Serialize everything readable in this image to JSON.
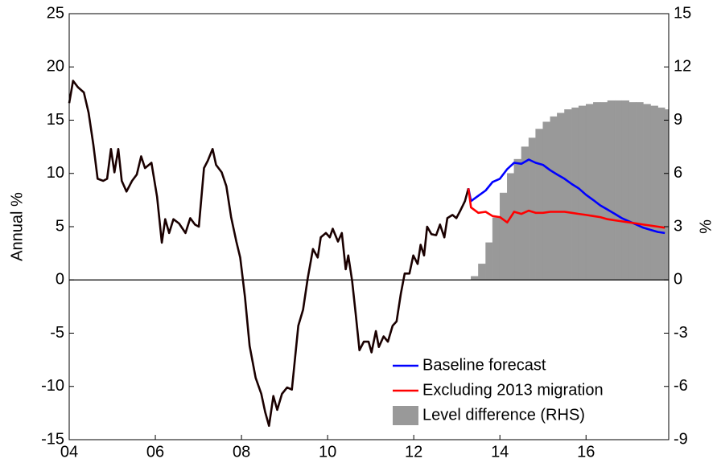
{
  "chart_data": {
    "type": "line",
    "x": [
      2004.0,
      2004.09,
      2004.2,
      2004.34,
      2004.45,
      2004.56,
      2004.66,
      2004.79,
      2004.88,
      2004.97,
      2005.05,
      2005.14,
      2005.22,
      2005.33,
      2005.46,
      2005.57,
      2005.67,
      2005.76,
      2005.91,
      2006.04,
      2006.15,
      2006.23,
      2006.32,
      2006.42,
      2006.55,
      2006.7,
      2006.81,
      2006.92,
      2007.01,
      2007.13,
      2007.22,
      2007.33,
      2007.41,
      2007.54,
      2007.65,
      2007.76,
      2007.88,
      2007.97,
      2008.08,
      2008.19,
      2008.33,
      2008.46,
      2008.55,
      2008.64,
      2008.74,
      2008.83,
      2008.94,
      2009.06,
      2009.17,
      2009.32,
      2009.43,
      2009.54,
      2009.66,
      2009.77,
      2009.84,
      2009.96,
      2010.05,
      2010.12,
      2010.24,
      2010.33,
      2010.42,
      2010.48,
      2010.57,
      2010.65,
      2010.74,
      2010.84,
      2010.95,
      2011.02,
      2011.12,
      2011.19,
      2011.3,
      2011.4,
      2011.51,
      2011.6,
      2011.7,
      2011.79,
      2011.9,
      2011.99,
      2012.09,
      2012.16,
      2012.24,
      2012.31,
      2012.41,
      2012.52,
      2012.61,
      2012.71,
      2012.78,
      2012.9,
      2012.99,
      2013.08,
      2013.19,
      2013.27,
      2013.33,
      2013.5,
      2013.67,
      2013.83,
      2014.0,
      2014.17,
      2014.33,
      2014.5,
      2014.67,
      2014.83,
      2015.0,
      2015.17,
      2015.33,
      2015.5,
      2015.67,
      2015.83,
      2016.0,
      2016.17,
      2016.33,
      2016.5,
      2016.67,
      2016.83,
      2017.0,
      2017.17,
      2017.33,
      2017.5,
      2017.67,
      2017.83
    ],
    "series": [
      {
        "color": "#1a0000",
        "values": [
          16.6,
          18.7,
          18.1,
          17.6,
          15.7,
          12.7,
          9.5,
          9.3,
          9.5,
          12.3,
          10.1,
          12.3,
          9.3,
          8.3,
          9.3,
          9.9,
          11.6,
          10.5,
          11.0,
          7.8,
          3.5,
          5.7,
          4.4,
          5.7,
          5.3,
          4.4,
          5.8,
          5.2,
          5.0,
          10.5,
          11.2,
          12.3,
          10.8,
          10.1,
          8.8,
          5.9,
          3.6,
          2.1,
          -1.6,
          -6.2,
          -9.2,
          -10.7,
          -12.4,
          -13.7,
          -10.9,
          -12.2,
          -10.7,
          -10.1,
          -10.3,
          -4.3,
          -2.8,
          0.2,
          2.9,
          2.1,
          4.0,
          4.4,
          4.0,
          4.8,
          3.6,
          4.4,
          1.0,
          2.3,
          -0.1,
          -3.1,
          -6.6,
          -5.8,
          -5.8,
          -6.8,
          -4.8,
          -6.3,
          -5.3,
          -5.8,
          -4.3,
          -3.9,
          -1.3,
          0.6,
          0.6,
          2.3,
          1.5,
          3.3,
          2.3,
          5.0,
          4.3,
          4.2,
          5.2,
          4.0,
          5.8,
          6.1,
          5.8,
          6.5,
          7.4,
          8.6,
          null,
          null,
          null,
          null,
          null,
          null,
          null,
          null,
          null,
          null,
          null,
          null,
          null,
          null,
          null,
          null,
          null,
          null,
          null,
          null,
          null,
          null,
          null,
          null,
          null,
          null,
          null,
          null
        ]
      },
      {
        "name": "Baseline forecast",
        "color": "#0000ff",
        "values": [
          null,
          null,
          null,
          null,
          null,
          null,
          null,
          null,
          null,
          null,
          null,
          null,
          null,
          null,
          null,
          null,
          null,
          null,
          null,
          null,
          null,
          null,
          null,
          null,
          null,
          null,
          null,
          null,
          null,
          null,
          null,
          null,
          null,
          null,
          null,
          null,
          null,
          null,
          null,
          null,
          null,
          null,
          null,
          null,
          null,
          null,
          null,
          null,
          null,
          null,
          null,
          null,
          null,
          null,
          null,
          null,
          null,
          null,
          null,
          null,
          null,
          null,
          null,
          null,
          null,
          null,
          null,
          null,
          null,
          null,
          null,
          null,
          null,
          null,
          null,
          null,
          null,
          null,
          null,
          null,
          null,
          null,
          null,
          null,
          null,
          null,
          null,
          null,
          null,
          null,
          null,
          8.6,
          7.4,
          7.9,
          8.4,
          9.2,
          9.5,
          10.4,
          11.0,
          10.9,
          11.3,
          11.0,
          10.8,
          10.3,
          9.9,
          9.5,
          9.0,
          8.6,
          8.0,
          7.5,
          7.0,
          6.6,
          6.2,
          5.8,
          5.5,
          5.2,
          4.9,
          4.7,
          4.5,
          4.4
        ]
      },
      {
        "name": "Excluding 2013 migration",
        "color": "#ff0000",
        "values": [
          null,
          null,
          null,
          null,
          null,
          null,
          null,
          null,
          null,
          null,
          null,
          null,
          null,
          null,
          null,
          null,
          null,
          null,
          null,
          null,
          null,
          null,
          null,
          null,
          null,
          null,
          null,
          null,
          null,
          null,
          null,
          null,
          null,
          null,
          null,
          null,
          null,
          null,
          null,
          null,
          null,
          null,
          null,
          null,
          null,
          null,
          null,
          null,
          null,
          null,
          null,
          null,
          null,
          null,
          null,
          null,
          null,
          null,
          null,
          null,
          null,
          null,
          null,
          null,
          null,
          null,
          null,
          null,
          null,
          null,
          null,
          null,
          null,
          null,
          null,
          null,
          null,
          null,
          null,
          null,
          null,
          null,
          null,
          null,
          null,
          null,
          null,
          null,
          null,
          null,
          null,
          8.6,
          6.8,
          6.3,
          6.4,
          6.0,
          5.9,
          5.4,
          6.4,
          6.2,
          6.5,
          6.3,
          6.3,
          6.4,
          6.4,
          6.4,
          6.3,
          6.2,
          6.1,
          6.0,
          5.9,
          5.7,
          5.6,
          5.5,
          5.4,
          5.3,
          5.2,
          5.1,
          5.0,
          4.9
        ]
      },
      {
        "name": "Level difference (RHS)",
        "color": "#999999",
        "type": "bar",
        "axis": "y2",
        "values": [
          null,
          null,
          null,
          null,
          null,
          null,
          null,
          null,
          null,
          null,
          null,
          null,
          null,
          null,
          null,
          null,
          null,
          null,
          null,
          null,
          null,
          null,
          null,
          null,
          null,
          null,
          null,
          null,
          null,
          null,
          null,
          null,
          null,
          null,
          null,
          null,
          null,
          null,
          null,
          null,
          null,
          null,
          null,
          null,
          null,
          null,
          null,
          null,
          null,
          null,
          null,
          null,
          null,
          null,
          null,
          null,
          null,
          null,
          null,
          null,
          null,
          null,
          null,
          null,
          null,
          null,
          null,
          null,
          null,
          null,
          null,
          null,
          null,
          null,
          null,
          null,
          null,
          null,
          null,
          null,
          null,
          null,
          null,
          null,
          null,
          null,
          null,
          null,
          null,
          null,
          null,
          null,
          0.2,
          0.9,
          2.1,
          3.5,
          4.9,
          6.0,
          6.8,
          7.5,
          8.0,
          8.5,
          8.9,
          9.2,
          9.4,
          9.6,
          9.7,
          9.8,
          9.9,
          10.0,
          10.0,
          10.1,
          10.1,
          10.1,
          10.0,
          10.0,
          9.9,
          9.8,
          9.7,
          9.6
        ]
      }
    ],
    "xlim": [
      2004,
      2017.92
    ],
    "xticks": [
      {
        "value": 2004,
        "label": "04"
      },
      {
        "value": 2006,
        "label": "06"
      },
      {
        "value": 2008,
        "label": "08"
      },
      {
        "value": 2010,
        "label": "10"
      },
      {
        "value": 2012,
        "label": "12"
      },
      {
        "value": 2014,
        "label": "14"
      },
      {
        "value": 2016,
        "label": "16"
      }
    ],
    "ylim": [
      -15,
      25
    ],
    "yticks": [
      -15,
      -10,
      -5,
      0,
      5,
      10,
      15,
      20,
      25
    ],
    "y2lim": [
      -9,
      15
    ],
    "y2ticks": [
      -9,
      -6,
      -3,
      0,
      3,
      6,
      9,
      12,
      15
    ],
    "ylabel": "Annual %",
    "y2label": "%",
    "legend": "lower right"
  }
}
